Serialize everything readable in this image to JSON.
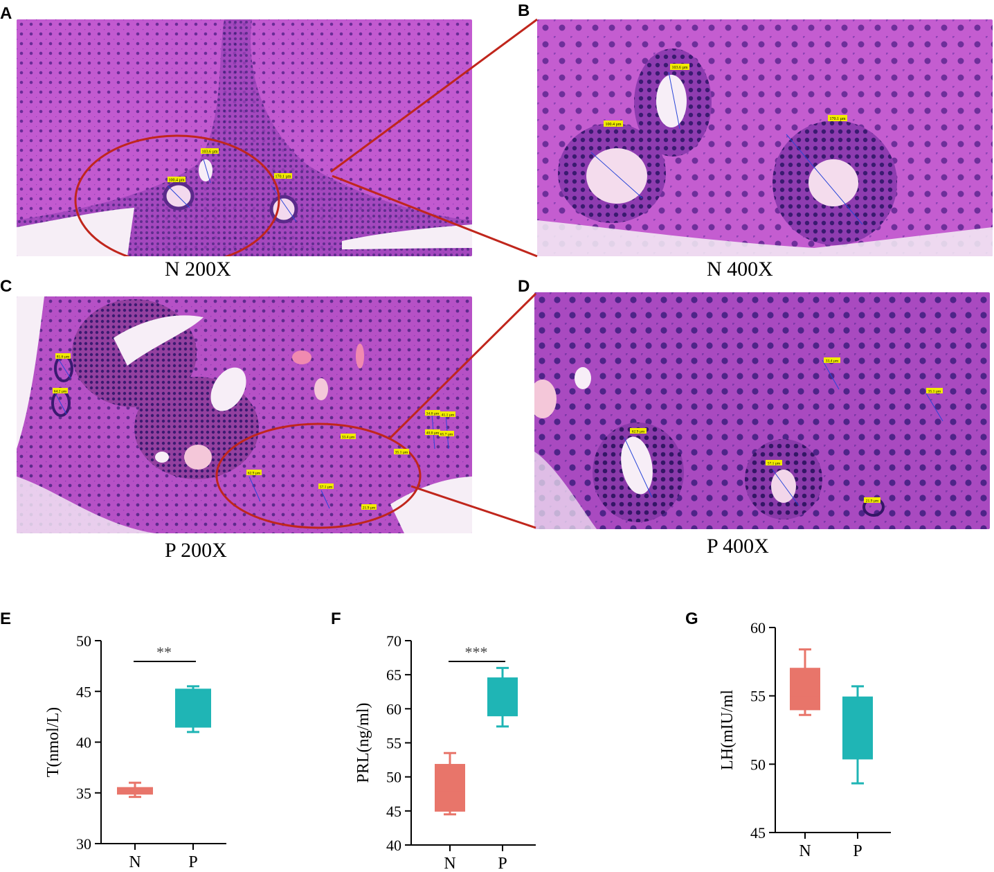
{
  "panels": {
    "A": {
      "letter": "A",
      "caption": "N 200X"
    },
    "B": {
      "letter": "B",
      "caption": "N 400X"
    },
    "C": {
      "letter": "C",
      "caption": "P 200X"
    },
    "D": {
      "letter": "D",
      "caption": "P 400X"
    },
    "E": {
      "letter": "E"
    },
    "F": {
      "letter": "F"
    },
    "G": {
      "letter": "G"
    }
  },
  "micro_labels": {
    "A": [
      "100.4 µm",
      "103.6 µm",
      "170.1 µm"
    ],
    "B": [
      "100.4 µm",
      "103.6 µm",
      "170.1 µm"
    ],
    "C": [
      "81.6 µm",
      "64.2 µm",
      "34.0 µm",
      "41.1 µm",
      "40.0 µm",
      "65.7 µm",
      "33.4 µm",
      "35.1 µm",
      "62.9 µm",
      "57.1 µm",
      "21.9 µm"
    ],
    "D": [
      "33.4 µm",
      "35.1 µm",
      "62.9 µm",
      "57.1 µm",
      "21.9 µm"
    ]
  },
  "colors": {
    "tissue": "#b04fc0",
    "tissue_dark": "#5a2a8a",
    "highlight_circle": "#c0261c",
    "N": "#e8756a",
    "P": "#1fb5b5",
    "label_bg": "#f2ec00"
  },
  "chart_data": [
    {
      "type": "box",
      "panel": "E",
      "ylabel": "T(nmol/L)",
      "ylim": [
        30,
        50
      ],
      "yticks": [
        30,
        35,
        40,
        45,
        50
      ],
      "categories": [
        "N",
        "P"
      ],
      "boxes": [
        {
          "name": "N",
          "min": 34.6,
          "q1": 34.9,
          "median": 35.2,
          "q3": 35.5,
          "max": 36.0
        },
        {
          "name": "P",
          "min": 41.0,
          "q1": 41.5,
          "median": 44.3,
          "q3": 45.2,
          "max": 45.5
        }
      ],
      "significance": "**"
    },
    {
      "type": "box",
      "panel": "F",
      "ylabel": "PRL(ng/ml)",
      "ylim": [
        40,
        70
      ],
      "yticks": [
        40,
        45,
        50,
        55,
        60,
        65,
        70
      ],
      "categories": [
        "N",
        "P"
      ],
      "boxes": [
        {
          "name": "N",
          "min": 44.5,
          "q1": 45.0,
          "median": 48.0,
          "q3": 51.8,
          "max": 53.5
        },
        {
          "name": "P",
          "min": 57.4,
          "q1": 59.0,
          "median": 61.0,
          "q3": 64.5,
          "max": 66.0
        }
      ],
      "significance": "***"
    },
    {
      "type": "box",
      "panel": "G",
      "ylabel": "LH(mIU/ml",
      "ylim": [
        45,
        60
      ],
      "yticks": [
        45,
        50,
        55,
        60
      ],
      "categories": [
        "N",
        "P"
      ],
      "boxes": [
        {
          "name": "N",
          "min": 53.6,
          "q1": 54.0,
          "median": 55.0,
          "q3": 57.0,
          "max": 58.4
        },
        {
          "name": "P",
          "min": 48.6,
          "q1": 50.4,
          "median": 52.5,
          "q3": 54.9,
          "max": 55.7
        }
      ],
      "significance": ""
    }
  ]
}
